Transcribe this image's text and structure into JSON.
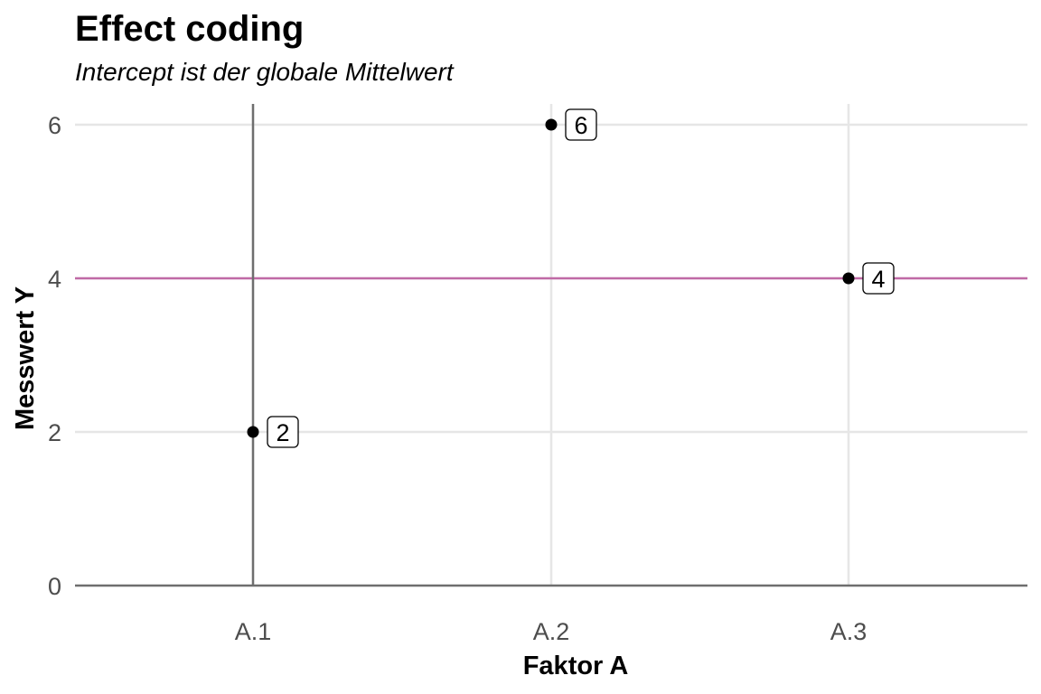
{
  "chart_data": {
    "type": "scatter",
    "title": "Effect coding",
    "subtitle": "Intercept ist der globale Mittelwert",
    "xlabel": "Faktor A",
    "ylabel": "Messwert Y",
    "categories": [
      "A.1",
      "A.2",
      "A.3"
    ],
    "points": [
      {
        "x": "A.1",
        "y": 2,
        "label": "2"
      },
      {
        "x": "A.2",
        "y": 6,
        "label": "6"
      },
      {
        "x": "A.3",
        "y": 4,
        "label": "4"
      }
    ],
    "yticks": [
      0,
      2,
      4,
      6
    ],
    "ylim": [
      0,
      6.3
    ],
    "reference_line": {
      "y": 4,
      "color": "#c06aa6"
    },
    "axis_line_color": "#6e6e6e",
    "grid": true,
    "point_color": "#000000",
    "grid_color": "#e6e6e6"
  }
}
